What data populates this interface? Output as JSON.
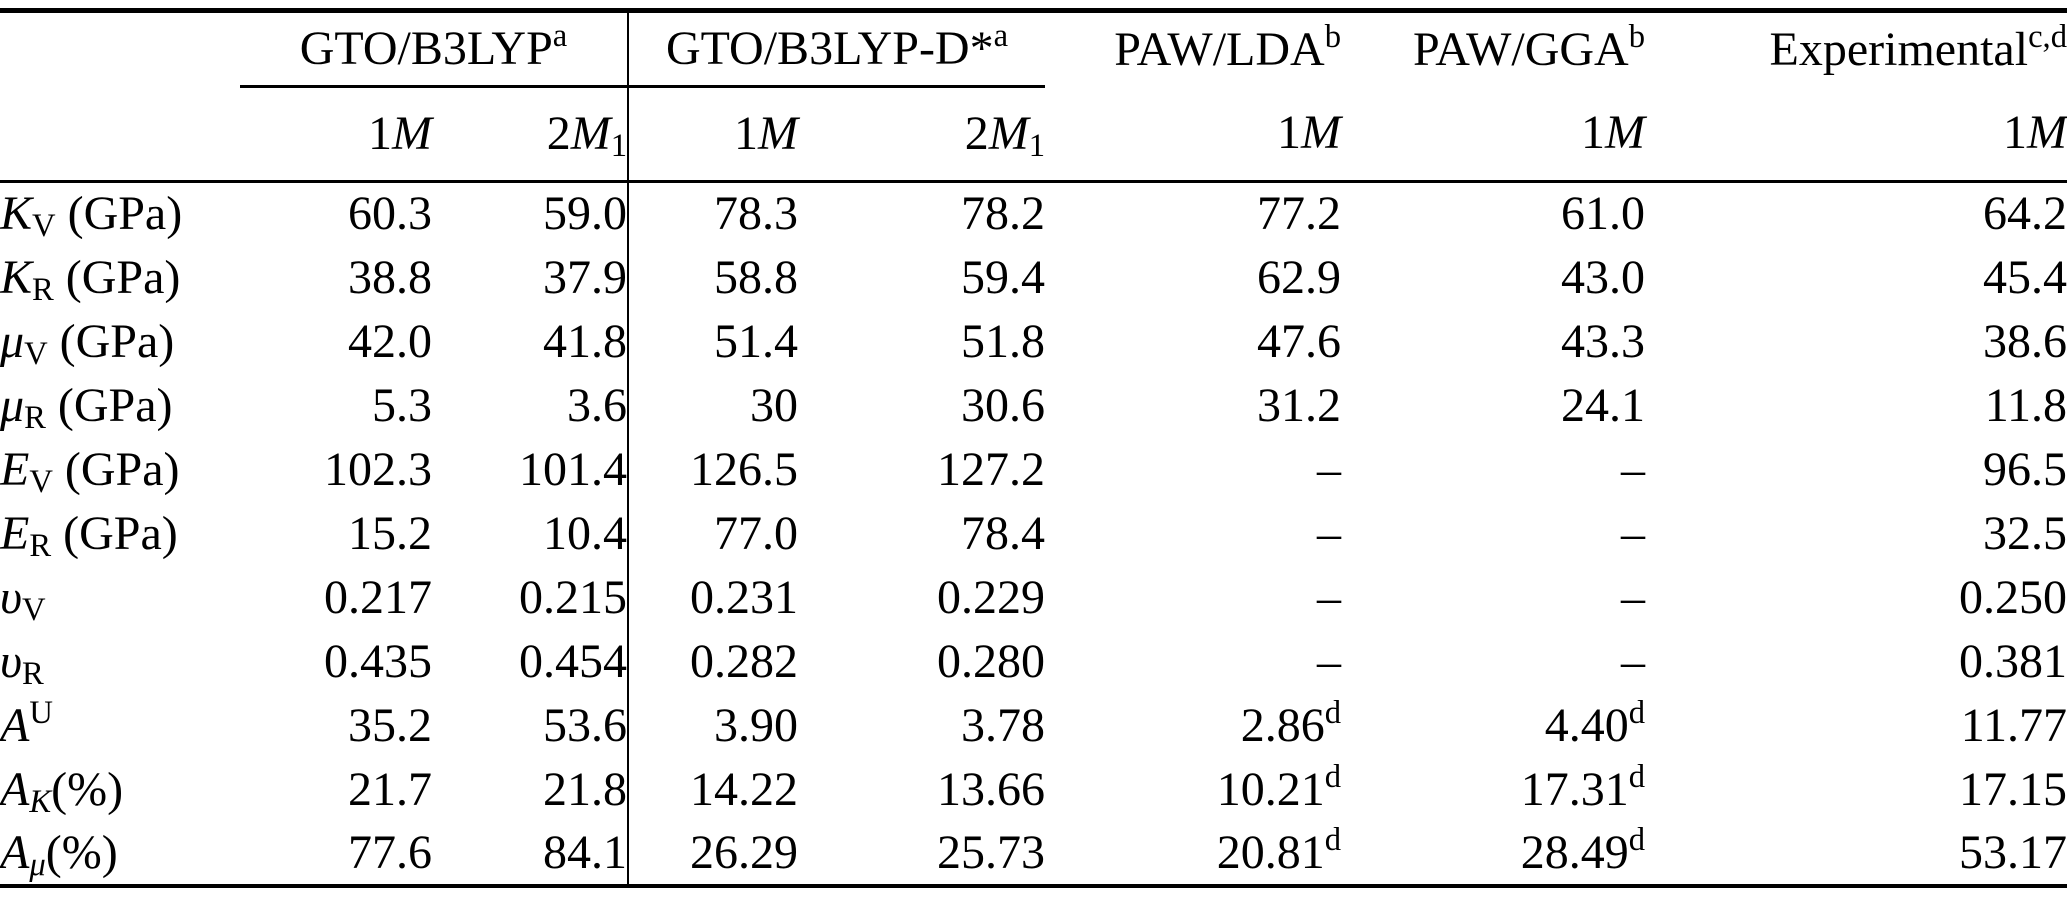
{
  "page": {
    "background_color": "#ffffff",
    "text_color": "#000000"
  },
  "table": {
    "description_name": "elastic-properties-comparison-table",
    "corner_label": "",
    "header_groups": [
      {
        "parts": [
          [
            "GTO/B3LYP",
            "n"
          ],
          [
            "a",
            "sup"
          ]
        ],
        "span": 2,
        "align": "center",
        "classes": "group-cell vr mid-rule"
      },
      {
        "parts": [
          [
            "GTO/B3LYP-D*",
            "n"
          ],
          [
            "a",
            "sup"
          ]
        ],
        "span": 2,
        "align": "center",
        "classes": "group-cell mid-rule"
      },
      {
        "parts": [
          [
            "PAW/LDA",
            "n"
          ],
          [
            "b",
            "sup"
          ]
        ],
        "span": 1,
        "align": "right",
        "classes": "head-right p10"
      },
      {
        "parts": [
          [
            "PAW/GGA",
            "n"
          ],
          [
            "b",
            "sup"
          ]
        ],
        "span": 1,
        "align": "right",
        "classes": "head-right p10"
      },
      {
        "parts": [
          [
            "Experimental",
            "n"
          ],
          [
            "c,d",
            "sup"
          ]
        ],
        "span": 1,
        "align": "right",
        "classes": "head-right p30"
      }
    ],
    "subheaders": [
      {
        "parts": [
          [
            "1",
            "n"
          ],
          [
            "M",
            "i"
          ]
        ],
        "classes": "num p10"
      },
      {
        "parts": [
          [
            "2",
            "n"
          ],
          [
            "M",
            "i"
          ],
          [
            "1",
            "sub"
          ]
        ],
        "classes": "num p20 vr"
      },
      {
        "parts": [
          [
            "1",
            "n"
          ],
          [
            "M",
            "i"
          ]
        ],
        "classes": "num p20"
      },
      {
        "parts": [
          [
            "2",
            "n"
          ],
          [
            "M",
            "i"
          ],
          [
            "1",
            "sub"
          ]
        ],
        "classes": "num p10"
      },
      {
        "parts": [
          [
            "1",
            "n"
          ],
          [
            "M",
            "i"
          ]
        ],
        "classes": "num p10"
      },
      {
        "parts": [
          [
            "1",
            "n"
          ],
          [
            "M",
            "i"
          ]
        ],
        "classes": "num p10"
      },
      {
        "parts": [
          [
            "1",
            "n"
          ],
          [
            "M",
            "i"
          ]
        ],
        "classes": "num p30"
      }
    ],
    "value_cell_classes": [
      "num p10",
      "num p20 vr",
      "num p20",
      "num p10",
      "num p10",
      "num p10",
      "num p30"
    ],
    "rows": [
      {
        "label": [
          [
            "K",
            "i"
          ],
          [
            "V",
            "sub"
          ],
          [
            " (GPa)",
            "n"
          ]
        ],
        "values": [
          "60.3",
          "59.0",
          "78.3",
          "78.2",
          "77.2",
          "61.0",
          "64.2"
        ]
      },
      {
        "label": [
          [
            "K",
            "i"
          ],
          [
            "R",
            "sub"
          ],
          [
            " (GPa)",
            "n"
          ]
        ],
        "values": [
          "38.8",
          "37.9",
          "58.8",
          "59.4",
          "62.9",
          "43.0",
          "45.4"
        ]
      },
      {
        "label": [
          [
            "μ",
            "i"
          ],
          [
            "V",
            "sub"
          ],
          [
            " (GPa)",
            "n"
          ]
        ],
        "values": [
          "42.0",
          "41.8",
          "51.4",
          "51.8",
          "47.6",
          "43.3",
          "38.6"
        ]
      },
      {
        "label": [
          [
            "μ",
            "i"
          ],
          [
            "R",
            "sub"
          ],
          [
            " (GPa)",
            "n"
          ]
        ],
        "values": [
          "5.3",
          "3.6",
          "30",
          "30.6",
          "31.2",
          "24.1",
          "11.8"
        ]
      },
      {
        "label": [
          [
            "E",
            "i"
          ],
          [
            "V",
            "sub"
          ],
          [
            " (GPa)",
            "n"
          ]
        ],
        "values": [
          "102.3",
          "101.4",
          "126.5",
          "127.2",
          "–",
          "–",
          "96.5"
        ]
      },
      {
        "label": [
          [
            "E",
            "i"
          ],
          [
            "R",
            "sub"
          ],
          [
            " (GPa)",
            "n"
          ]
        ],
        "values": [
          "15.2",
          "10.4",
          "77.0",
          "78.4",
          "–",
          "–",
          "32.5"
        ]
      },
      {
        "label": [
          [
            "υ",
            "i"
          ],
          [
            "V",
            "sub"
          ]
        ],
        "values": [
          "0.217",
          "0.215",
          "0.231",
          "0.229",
          "–",
          "–",
          "0.250"
        ]
      },
      {
        "label": [
          [
            "υ",
            "i"
          ],
          [
            "R",
            "sub"
          ]
        ],
        "values": [
          "0.435",
          "0.454",
          "0.282",
          "0.280",
          "–",
          "–",
          "0.381"
        ]
      },
      {
        "label": [
          [
            "A",
            "i"
          ],
          [
            "U",
            "sup"
          ]
        ],
        "values": [
          "35.2",
          "53.6",
          "3.90",
          "3.78",
          [
            [
              "2.86",
              "n"
            ],
            [
              "d",
              "sup"
            ]
          ],
          [
            [
              "4.40",
              "n"
            ],
            [
              "d",
              "sup"
            ]
          ],
          "11.77"
        ]
      },
      {
        "label": [
          [
            "A",
            "i"
          ],
          [
            "K",
            "subi"
          ],
          [
            "(%)",
            "n"
          ]
        ],
        "values": [
          "21.7",
          "21.8",
          "14.22",
          "13.66",
          [
            [
              "10.21",
              "n"
            ],
            [
              "d",
              "sup"
            ]
          ],
          [
            [
              "17.31",
              "n"
            ],
            [
              "d",
              "sup"
            ]
          ],
          "17.15"
        ]
      },
      {
        "label": [
          [
            "A",
            "i"
          ],
          [
            "μ",
            "subi"
          ],
          [
            "(%)",
            "n"
          ]
        ],
        "values": [
          "77.6",
          "84.1",
          "26.29",
          "25.73",
          [
            [
              "20.81",
              "n"
            ],
            [
              "d",
              "sup"
            ]
          ],
          [
            [
              "28.49",
              "n"
            ],
            [
              "d",
              "sup"
            ]
          ],
          "53.17"
        ]
      }
    ]
  }
}
